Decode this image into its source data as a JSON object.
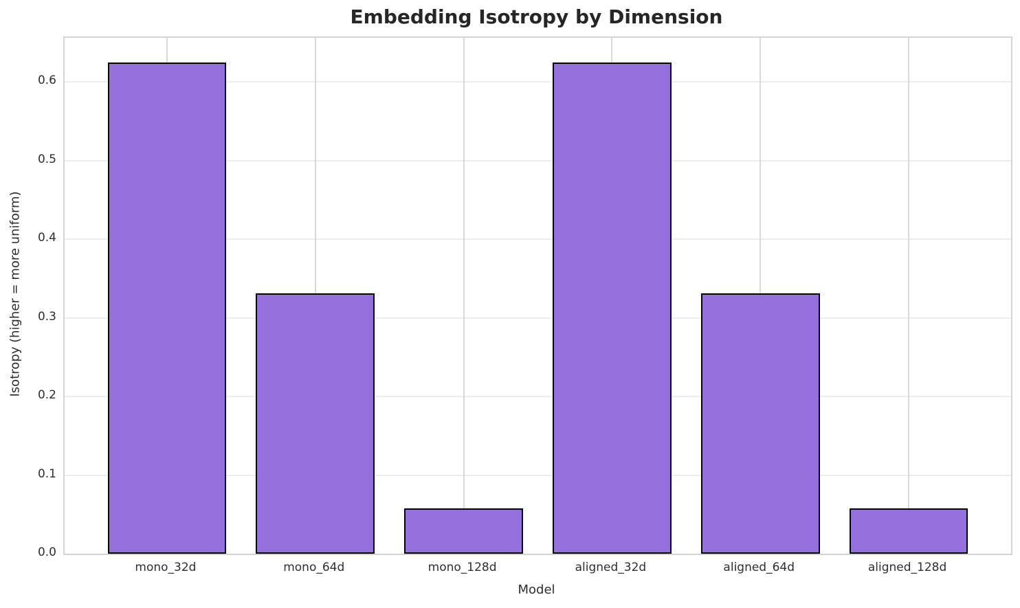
{
  "chart_data": {
    "type": "bar",
    "title": "Embedding Isotropy by Dimension",
    "xlabel": "Model",
    "ylabel": "Isotropy (higher = more uniform)",
    "categories": [
      "mono_32d",
      "mono_64d",
      "mono_128d",
      "aligned_32d",
      "aligned_64d",
      "aligned_128d"
    ],
    "values": [
      0.625,
      0.331,
      0.058,
      0.625,
      0.331,
      0.058
    ],
    "ylim": [
      0,
      0.656
    ],
    "xlim": [
      -0.69,
      5.69
    ],
    "yticks": [
      0.0,
      0.1,
      0.2,
      0.3,
      0.4,
      0.5,
      0.6
    ],
    "ytick_labels": [
      "0.0",
      "0.1",
      "0.2",
      "0.3",
      "0.4",
      "0.5",
      "0.6"
    ],
    "grid": true,
    "legend": "none",
    "bar_width_fraction": 0.8,
    "colors": {
      "bar_fill": "#9370db",
      "bar_edge": "#000000",
      "grid_horizontal": "#ececec",
      "grid_vertical": "#d9d9d9",
      "spine": "#d4d4d4",
      "title_text": "#262626",
      "tick_text": "#2e2e2e",
      "background": "#ffffff"
    }
  }
}
